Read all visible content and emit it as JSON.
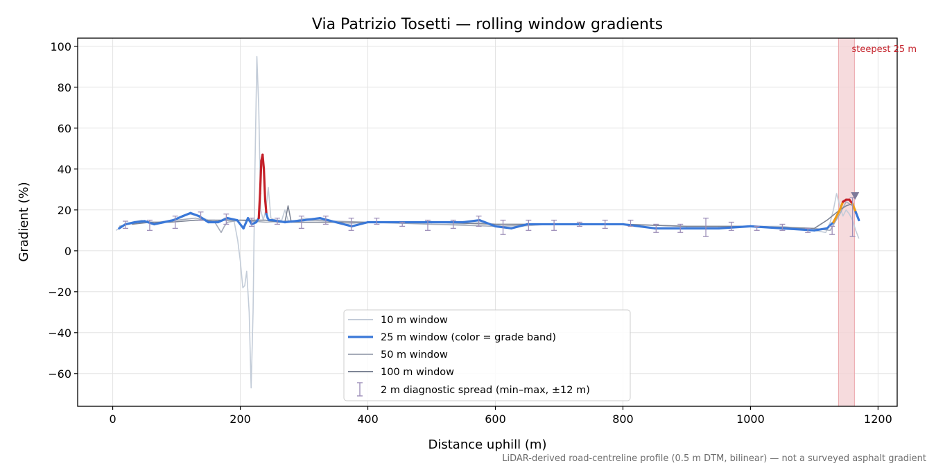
{
  "chart_data": {
    "type": "line",
    "title": "Via Patrizio Tosetti — rolling window gradients",
    "xlabel": "Distance uphill (m)",
    "ylabel": "Gradient (%)",
    "xlim": [
      -55,
      1230
    ],
    "ylim": [
      -76,
      104
    ],
    "xticks": [
      0,
      200,
      400,
      600,
      800,
      1000,
      1200
    ],
    "yticks": [
      -60,
      -40,
      -20,
      0,
      20,
      40,
      60,
      80,
      100
    ],
    "xtick_labels": [
      "0",
      "200",
      "400",
      "600",
      "800",
      "1000",
      "1200"
    ],
    "ytick_labels": [
      "−60",
      "−40",
      "−20",
      "0",
      "20",
      "40",
      "60",
      "80",
      "100"
    ],
    "grid": true,
    "legend_position": "lower-center",
    "series": [
      {
        "name": "10 m window",
        "color": "#c3ccd8",
        "x": [
          5,
          15,
          30,
          45,
          60,
          75,
          90,
          105,
          120,
          135,
          150,
          160,
          168,
          175,
          182,
          190,
          196,
          200,
          204,
          207,
          210,
          214,
          217,
          220,
          223,
          226,
          229,
          232,
          236,
          240,
          244,
          248,
          256,
          265,
          270,
          275,
          280,
          300,
          330,
          360,
          400,
          450,
          500,
          550,
          575,
          600,
          620,
          640,
          680,
          720,
          760,
          800,
          850,
          900,
          950,
          1000,
          1050,
          1100,
          1118,
          1125,
          1130,
          1135,
          1140,
          1145,
          1150,
          1155,
          1160,
          1165,
          1170
        ],
        "y": [
          10,
          12,
          14,
          15,
          14,
          14,
          15,
          16,
          18,
          17,
          15,
          15,
          14,
          16,
          16,
          15,
          5,
          -5,
          -18,
          -17,
          -10,
          -30,
          -67,
          -30,
          40,
          95,
          70,
          20,
          15,
          20,
          31,
          16,
          15,
          15,
          20,
          15,
          14,
          16,
          15,
          13,
          14,
          14,
          13,
          13,
          14,
          13,
          11,
          12,
          13,
          13,
          13,
          13,
          11,
          11,
          11,
          12,
          12,
          10,
          9,
          14,
          20,
          28,
          22,
          17,
          20,
          18,
          15,
          10,
          6
        ]
      },
      {
        "name": "25 m window (color = grade band)",
        "color": "#3a78d8",
        "band_colors": {
          "blue": "#3a78d8",
          "orange": "#ee9b18",
          "red": "#c42029"
        },
        "x": [
          10,
          20,
          35,
          50,
          65,
          80,
          95,
          110,
          122,
          135,
          150,
          165,
          180,
          195,
          205,
          212,
          218,
          225,
          229,
          231,
          233,
          235,
          237,
          239,
          241,
          243,
          245,
          250,
          270,
          300,
          325,
          350,
          375,
          400,
          450,
          500,
          550,
          575,
          600,
          625,
          650,
          700,
          750,
          800,
          850,
          900,
          950,
          1000,
          1050,
          1100,
          1120,
          1130,
          1140,
          1145,
          1150,
          1155,
          1160,
          1165,
          1170
        ],
        "y": [
          11,
          13,
          14,
          14.5,
          13,
          14,
          15,
          17,
          18.5,
          17,
          14,
          14,
          16,
          15,
          11,
          16,
          13,
          14,
          16,
          28,
          44,
          47,
          40,
          25,
          18,
          16,
          15,
          15,
          14,
          15,
          16,
          14,
          12,
          14,
          14,
          14,
          14,
          15,
          12,
          11,
          13,
          13,
          13,
          13,
          11,
          11,
          11,
          12,
          11,
          10,
          11,
          14,
          20,
          24,
          25,
          25,
          23,
          19,
          15
        ]
      },
      {
        "name": "50 m window",
        "color": "#a6acb9",
        "x": [
          10,
          40,
          70,
          100,
          130,
          160,
          170,
          175,
          180,
          200,
          240,
          300,
          400,
          500,
          600,
          700,
          800,
          900,
          1000,
          1100,
          1125,
          1140,
          1150,
          1160,
          1165
        ],
        "y": [
          12,
          14,
          14,
          15,
          16,
          14,
          9,
          12,
          14,
          15,
          14,
          15,
          14,
          13,
          12,
          13,
          13,
          12,
          12,
          11,
          10,
          18,
          24,
          22,
          18
        ]
      },
      {
        "name": "100 m window",
        "color": "#7e8595",
        "x": [
          30,
          60,
          90,
          130,
          170,
          200,
          240,
          260,
          270,
          275,
          280,
          300,
          400,
          500,
          600,
          700,
          800,
          900,
          1000,
          1100,
          1120,
          1140,
          1150,
          1160
        ],
        "y": [
          13,
          14,
          14,
          15,
          15,
          15,
          15,
          14,
          14,
          22,
          14,
          14,
          14,
          14,
          13,
          13,
          13,
          12,
          12,
          11,
          15,
          20,
          22,
          23
        ]
      }
    ],
    "error_bars": {
      "name": "2 m diagnostic spread (min–max, ±12 m)",
      "color": "#9d8fb8",
      "points": [
        {
          "x": 20,
          "low": 11,
          "high": 14.5
        },
        {
          "x": 58,
          "low": 10,
          "high": 15
        },
        {
          "x": 98,
          "low": 11,
          "high": 17
        },
        {
          "x": 138,
          "low": 15,
          "high": 19
        },
        {
          "x": 178,
          "low": 13,
          "high": 18
        },
        {
          "x": 218,
          "low": 12,
          "high": 16
        },
        {
          "x": 258,
          "low": 13,
          "high": 16
        },
        {
          "x": 296,
          "low": 11,
          "high": 17
        },
        {
          "x": 334,
          "low": 13,
          "high": 17
        },
        {
          "x": 374,
          "low": 10,
          "high": 16
        },
        {
          "x": 414,
          "low": 13,
          "high": 16
        },
        {
          "x": 454,
          "low": 12,
          "high": 14
        },
        {
          "x": 494,
          "low": 10,
          "high": 15
        },
        {
          "x": 534,
          "low": 11,
          "high": 15
        },
        {
          "x": 574,
          "low": 12,
          "high": 17
        },
        {
          "x": 612,
          "low": 8,
          "high": 15
        },
        {
          "x": 652,
          "low": 10,
          "high": 15
        },
        {
          "x": 692,
          "low": 10,
          "high": 15
        },
        {
          "x": 732,
          "low": 12,
          "high": 14
        },
        {
          "x": 772,
          "low": 11,
          "high": 15
        },
        {
          "x": 812,
          "low": 12,
          "high": 15
        },
        {
          "x": 852,
          "low": 9,
          "high": 13
        },
        {
          "x": 890,
          "low": 9,
          "high": 13
        },
        {
          "x": 930,
          "low": 7,
          "high": 16
        },
        {
          "x": 970,
          "low": 10,
          "high": 14
        },
        {
          "x": 1010,
          "low": 10,
          "high": 12
        },
        {
          "x": 1050,
          "low": 10,
          "high": 13
        },
        {
          "x": 1090,
          "low": 9,
          "high": 11
        },
        {
          "x": 1128,
          "low": 8,
          "high": 12
        },
        {
          "x": 1160,
          "low": 7,
          "high": 26
        }
      ]
    },
    "highlight": {
      "label": "steepest 25 m",
      "x_start": 1138,
      "x_end": 1163,
      "color": "#f4d2d4",
      "label_color": "#c42029"
    },
    "marker": {
      "x": 1164,
      "y": 27,
      "shape": "downward-triangle",
      "color": "#7e7a9a"
    }
  },
  "footnote": "LiDAR-derived road-centreline profile (0.5 m DTM, bilinear) — not a surveyed asphalt gradient"
}
